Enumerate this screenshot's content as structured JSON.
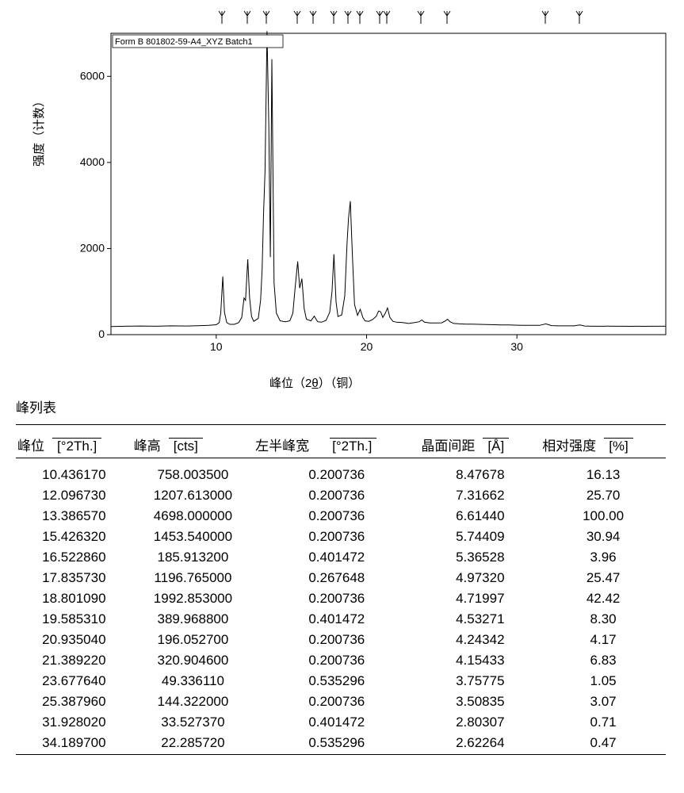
{
  "chart": {
    "type": "xrd-line",
    "inner_label": "Form B 801802-59-A4_XYZ Batch1",
    "y_axis_label": "强度（计数）",
    "x_axis_label_pre": "峰位（2",
    "x_axis_label_theta": "θ",
    "x_axis_label_post": "）（铜）",
    "xlim": [
      3,
      39.9
    ],
    "ylim": [
      0,
      7000
    ],
    "xticks": [
      10,
      20,
      30
    ],
    "yticks": [
      0,
      2000,
      4000,
      6000
    ],
    "background_color": "#ffffff",
    "frame_color": "#000000",
    "line_color": "#000000",
    "line_width": 1,
    "label_font_size": 13,
    "tick_font_size": 14,
    "baseline": 200,
    "tick_mark_positions_2theta": [
      10.44,
      12.1,
      13.39,
      15.43,
      16.52,
      17.84,
      18.8,
      19.59,
      20.94,
      21.39,
      23.68,
      25.39,
      31.93,
      34.19
    ],
    "trace": [
      [
        3.0,
        190
      ],
      [
        4.0,
        195
      ],
      [
        5.0,
        200
      ],
      [
        6.0,
        195
      ],
      [
        7.0,
        205
      ],
      [
        8.0,
        200
      ],
      [
        8.5,
        205
      ],
      [
        9.0,
        210
      ],
      [
        9.5,
        215
      ],
      [
        10.0,
        230
      ],
      [
        10.2,
        280
      ],
      [
        10.3,
        500
      ],
      [
        10.44,
        1350
      ],
      [
        10.55,
        520
      ],
      [
        10.7,
        280
      ],
      [
        10.9,
        240
      ],
      [
        11.2,
        240
      ],
      [
        11.5,
        280
      ],
      [
        11.7,
        400
      ],
      [
        11.85,
        850
      ],
      [
        11.95,
        800
      ],
      [
        12.1,
        1750
      ],
      [
        12.22,
        860
      ],
      [
        12.35,
        420
      ],
      [
        12.5,
        310
      ],
      [
        12.8,
        380
      ],
      [
        12.95,
        800
      ],
      [
        13.05,
        1500
      ],
      [
        13.15,
        2800
      ],
      [
        13.25,
        3800
      ],
      [
        13.38,
        7050
      ],
      [
        13.5,
        4800
      ],
      [
        13.6,
        1800
      ],
      [
        13.7,
        6400
      ],
      [
        13.85,
        1200
      ],
      [
        14.0,
        500
      ],
      [
        14.25,
        320
      ],
      [
        14.6,
        300
      ],
      [
        14.9,
        320
      ],
      [
        15.1,
        500
      ],
      [
        15.25,
        1100
      ],
      [
        15.42,
        1700
      ],
      [
        15.55,
        1080
      ],
      [
        15.7,
        1300
      ],
      [
        15.85,
        600
      ],
      [
        16.0,
        360
      ],
      [
        16.3,
        320
      ],
      [
        16.52,
        430
      ],
      [
        16.75,
        300
      ],
      [
        17.0,
        290
      ],
      [
        17.3,
        330
      ],
      [
        17.55,
        520
      ],
      [
        17.7,
        1000
      ],
      [
        17.83,
        1870
      ],
      [
        17.97,
        760
      ],
      [
        18.1,
        420
      ],
      [
        18.35,
        460
      ],
      [
        18.55,
        900
      ],
      [
        18.7,
        2100
      ],
      [
        18.8,
        2700
      ],
      [
        18.92,
        3100
      ],
      [
        19.05,
        1900
      ],
      [
        19.2,
        700
      ],
      [
        19.4,
        450
      ],
      [
        19.58,
        590
      ],
      [
        19.75,
        400
      ],
      [
        19.9,
        320
      ],
      [
        20.15,
        310
      ],
      [
        20.4,
        350
      ],
      [
        20.65,
        430
      ],
      [
        20.8,
        550
      ],
      [
        20.94,
        530
      ],
      [
        21.08,
        400
      ],
      [
        21.25,
        500
      ],
      [
        21.39,
        620
      ],
      [
        21.55,
        400
      ],
      [
        21.75,
        310
      ],
      [
        22.0,
        290
      ],
      [
        22.4,
        280
      ],
      [
        22.8,
        260
      ],
      [
        23.2,
        280
      ],
      [
        23.5,
        300
      ],
      [
        23.68,
        340
      ],
      [
        23.85,
        290
      ],
      [
        24.2,
        270
      ],
      [
        24.6,
        270
      ],
      [
        25.0,
        275
      ],
      [
        25.25,
        320
      ],
      [
        25.39,
        360
      ],
      [
        25.55,
        300
      ],
      [
        25.8,
        260
      ],
      [
        26.2,
        250
      ],
      [
        26.6,
        245
      ],
      [
        27.0,
        245
      ],
      [
        27.5,
        240
      ],
      [
        28.0,
        235
      ],
      [
        28.5,
        230
      ],
      [
        29.0,
        225
      ],
      [
        29.5,
        225
      ],
      [
        30.0,
        220
      ],
      [
        30.5,
        215
      ],
      [
        31.0,
        215
      ],
      [
        31.5,
        215
      ],
      [
        31.93,
        250
      ],
      [
        32.3,
        210
      ],
      [
        32.8,
        205
      ],
      [
        33.3,
        205
      ],
      [
        33.8,
        205
      ],
      [
        34.19,
        225
      ],
      [
        34.5,
        200
      ],
      [
        35.0,
        195
      ],
      [
        35.5,
        195
      ],
      [
        36.0,
        198
      ],
      [
        36.5,
        195
      ],
      [
        37.0,
        195
      ],
      [
        37.5,
        193
      ],
      [
        38.0,
        195
      ],
      [
        38.5,
        193
      ],
      [
        39.0,
        195
      ],
      [
        39.5,
        195
      ],
      [
        39.9,
        195
      ]
    ]
  },
  "table_caption": "峰列表",
  "table": {
    "columns": [
      {
        "label": "峰位",
        "unit": "[°2Th.]"
      },
      {
        "label": "峰高",
        "unit": "[cts]"
      },
      {
        "label": "左半峰宽",
        "unit": "[°2Th.]"
      },
      {
        "label": "晶面间距",
        "unit": "[Å]"
      },
      {
        "label": "相对强度",
        "unit": "[%]"
      }
    ],
    "rows": [
      [
        "10.436170",
        "758.003500",
        "0.200736",
        "8.47678",
        "16.13"
      ],
      [
        "12.096730",
        "1207.613000",
        "0.200736",
        "7.31662",
        "25.70"
      ],
      [
        "13.386570",
        "4698.000000",
        "0.200736",
        "6.61440",
        "100.00"
      ],
      [
        "15.426320",
        "1453.540000",
        "0.200736",
        "5.74409",
        "30.94"
      ],
      [
        "16.522860",
        "185.913200",
        "0.401472",
        "5.36528",
        "3.96"
      ],
      [
        "17.835730",
        "1196.765000",
        "0.267648",
        "4.97320",
        "25.47"
      ],
      [
        "18.801090",
        "1992.853000",
        "0.200736",
        "4.71997",
        "42.42"
      ],
      [
        "19.585310",
        "389.968800",
        "0.401472",
        "4.53271",
        "8.30"
      ],
      [
        "20.935040",
        "196.052700",
        "0.200736",
        "4.24342",
        "4.17"
      ],
      [
        "21.389220",
        "320.904600",
        "0.200736",
        "4.15433",
        "6.83"
      ],
      [
        "23.677640",
        "49.336110",
        "0.535296",
        "3.75775",
        "1.05"
      ],
      [
        "25.387960",
        "144.322000",
        "0.200736",
        "3.50835",
        "3.07"
      ],
      [
        "31.928020",
        "33.527370",
        "0.401472",
        "2.80307",
        "0.71"
      ],
      [
        "34.189700",
        "22.285720",
        "0.535296",
        "2.62264",
        "0.47"
      ]
    ]
  }
}
